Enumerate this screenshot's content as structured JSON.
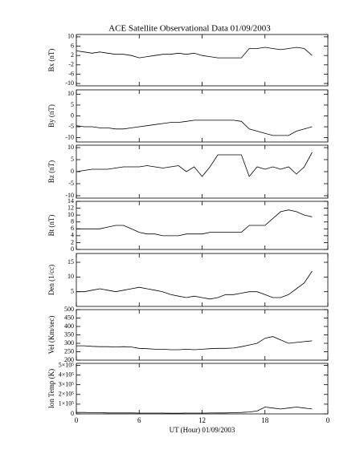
{
  "chart_data": [
    {
      "type": "line",
      "title": "ACE Satellite Observational Data   01/09/2003",
      "y_label": "Bx (nT)",
      "color": "#000000",
      "x": [
        0,
        0.75,
        1.5,
        2.25,
        3,
        3.75,
        4.5,
        5.25,
        6,
        6.75,
        7.5,
        8.25,
        9,
        9.75,
        10.5,
        11.25,
        12,
        12.75,
        13.5,
        14.25,
        15,
        15.75,
        16.5,
        17.25,
        18,
        18.75,
        19.5,
        20.25,
        21,
        21.75,
        22.5
      ],
      "values": [
        4,
        3.5,
        3,
        3.5,
        3,
        2.5,
        2.5,
        2,
        1,
        1.5,
        2,
        2.5,
        2.5,
        3,
        2.5,
        3,
        2,
        1.5,
        1,
        1,
        1,
        1,
        5,
        5,
        5.5,
        5,
        4.5,
        5,
        5.5,
        5,
        2
      ],
      "xlim": [
        0,
        24
      ],
      "xticks": [
        0,
        6,
        12,
        18,
        24
      ],
      "ylim": [
        -11,
        11
      ],
      "yticks": [
        10,
        6,
        2,
        -2,
        -6,
        -10
      ]
    },
    {
      "type": "line",
      "y_label": "By (nT)",
      "color": "#000000",
      "x": [
        0,
        0.75,
        1.5,
        2.25,
        3,
        3.75,
        4.5,
        5.25,
        6,
        6.75,
        7.5,
        8.25,
        9,
        9.75,
        10.5,
        11.25,
        12,
        12.75,
        13.5,
        14.25,
        15,
        15.75,
        16.5,
        17.25,
        18,
        18.75,
        19.5,
        20.25,
        21,
        21.75,
        22.5
      ],
      "values": [
        -4.5,
        -5,
        -5,
        -5.5,
        -5.5,
        -6,
        -6,
        -5.5,
        -5,
        -4.5,
        -4,
        -3.5,
        -3,
        -3,
        -2.5,
        -2,
        -2,
        -2,
        -2,
        -2,
        -2,
        -2.5,
        -6,
        -7,
        -8,
        -9,
        -9,
        -9,
        -7,
        -6,
        -5
      ],
      "xlim": [
        0,
        24
      ],
      "xticks": [
        0,
        6,
        12,
        18,
        24
      ],
      "ylim": [
        -12,
        12
      ],
      "yticks": [
        10,
        5,
        0,
        -5,
        -10
      ]
    },
    {
      "type": "line",
      "y_label": "Bz (nT)",
      "color": "#000000",
      "x": [
        0,
        0.75,
        1.5,
        2.25,
        3,
        3.75,
        4.5,
        5.25,
        6,
        6.75,
        7.5,
        8.25,
        9,
        9.75,
        10.5,
        11.25,
        12,
        12.75,
        13.5,
        14.25,
        15,
        15.75,
        16.5,
        17.25,
        18,
        18.75,
        19.5,
        20.25,
        21,
        21.75,
        22.5
      ],
      "values": [
        0,
        0.5,
        1,
        1,
        1,
        1.5,
        2,
        2,
        2,
        2.5,
        2,
        1.5,
        2,
        2.5,
        0,
        2,
        -2,
        2,
        7,
        7,
        7,
        7,
        -2,
        2,
        1,
        2,
        1,
        2,
        -1,
        2,
        8
      ],
      "xlim": [
        0,
        24
      ],
      "xticks": [
        0,
        6,
        12,
        18,
        24
      ],
      "ylim": [
        -11,
        11
      ],
      "yticks": [
        10,
        5,
        0,
        -5,
        -10
      ]
    },
    {
      "type": "line",
      "y_label": "Bt (nT)",
      "color": "#000000",
      "x": [
        0,
        0.75,
        1.5,
        2.25,
        3,
        3.75,
        4.5,
        5.25,
        6,
        6.75,
        7.5,
        8.25,
        9,
        9.75,
        10.5,
        11.25,
        12,
        12.75,
        13.5,
        14.25,
        15,
        15.75,
        16.5,
        17.25,
        18,
        18.75,
        19.5,
        20.25,
        21,
        21.75,
        22.5
      ],
      "values": [
        6,
        6,
        6,
        6,
        6.5,
        7,
        7,
        6,
        5,
        4.5,
        4.5,
        4,
        4,
        4,
        4.5,
        4.5,
        4.5,
        5,
        5,
        5,
        5,
        5,
        7,
        7,
        7,
        9,
        11,
        11.5,
        11,
        10,
        9.5
      ],
      "xlim": [
        0,
        24
      ],
      "xticks": [
        0,
        6,
        12,
        18,
        24
      ],
      "ylim": [
        0,
        14
      ],
      "yticks": [
        14,
        12,
        10,
        8,
        6,
        4,
        2,
        0
      ]
    },
    {
      "type": "line",
      "y_label": "Den (1/cc)",
      "color": "#000000",
      "x": [
        0,
        0.75,
        1.5,
        2.25,
        3,
        3.75,
        4.5,
        5.25,
        6,
        6.75,
        7.5,
        8.25,
        9,
        9.75,
        10.5,
        11.25,
        12,
        12.75,
        13.5,
        14.25,
        15,
        15.75,
        16.5,
        17.25,
        18,
        18.75,
        19.5,
        20.25,
        21,
        21.75,
        22.5
      ],
      "values": [
        5,
        5,
        5.5,
        6,
        5.5,
        5,
        5.5,
        6,
        6.5,
        6,
        5.5,
        5,
        4,
        3.5,
        3,
        3.5,
        3,
        2.5,
        3,
        4,
        4,
        4.5,
        5,
        5,
        4,
        3,
        3,
        4,
        6,
        8,
        12
      ],
      "xlim": [
        0,
        24
      ],
      "xticks": [
        0,
        6,
        12,
        18,
        24
      ],
      "ylim": [
        0,
        18
      ],
      "yticks": [
        15,
        10,
        5
      ]
    },
    {
      "type": "line",
      "y_label": "Vel (Km/sec)",
      "color": "#000000",
      "x": [
        0,
        0.75,
        1.5,
        2.25,
        3,
        3.75,
        4.5,
        5.25,
        6,
        6.75,
        7.5,
        8.25,
        9,
        9.75,
        10.5,
        11.25,
        12,
        12.75,
        13.5,
        14.25,
        15,
        15.75,
        16.5,
        17.25,
        18,
        18.75,
        19.5,
        20.25,
        21,
        21.75,
        22.5
      ],
      "values": [
        285,
        285,
        282,
        280,
        280,
        278,
        280,
        278,
        270,
        268,
        265,
        265,
        262,
        262,
        265,
        262,
        265,
        268,
        270,
        270,
        272,
        280,
        290,
        300,
        330,
        340,
        320,
        300,
        305,
        310,
        315
      ],
      "xlim": [
        0,
        24
      ],
      "xticks": [
        0,
        6,
        12,
        18,
        24
      ],
      "ylim": [
        200,
        500
      ],
      "yticks": [
        500,
        450,
        400,
        350,
        300,
        250,
        200
      ]
    },
    {
      "type": "line",
      "y_label": "Ion Temp (K)",
      "x_label": "UT (Hour)  01/09/2003",
      "color": "#000000",
      "x": [
        0,
        0.75,
        1.5,
        2.25,
        3,
        3.75,
        4.5,
        5.25,
        6,
        6.75,
        7.5,
        8.25,
        9,
        9.75,
        10.5,
        11.25,
        12,
        12.75,
        13.5,
        14.25,
        15,
        15.75,
        16.5,
        17.25,
        18,
        18.75,
        19.5,
        20.25,
        21,
        21.75,
        22.5
      ],
      "values": [
        15000,
        15000,
        12000,
        12000,
        10000,
        10000,
        10000,
        10000,
        8000,
        8000,
        8000,
        8000,
        7000,
        7000,
        8000,
        8000,
        8000,
        9000,
        10000,
        10000,
        12000,
        15000,
        20000,
        30000,
        70000,
        60000,
        50000,
        60000,
        70000,
        60000,
        50000
      ],
      "xlim": [
        0,
        24
      ],
      "xticks": [
        0,
        6,
        12,
        18,
        {
          "value": 24,
          "label": "0"
        }
      ],
      "ylim": [
        0,
        520000
      ],
      "yticks": [
        {
          "value": 500000,
          "label": "5×10⁵"
        },
        {
          "value": 400000,
          "label": "4×10⁵"
        },
        {
          "value": 300000,
          "label": "3×10⁵"
        },
        {
          "value": 200000,
          "label": "2×10⁵"
        },
        {
          "value": 100000,
          "label": "1×10⁵"
        },
        0
      ]
    }
  ]
}
